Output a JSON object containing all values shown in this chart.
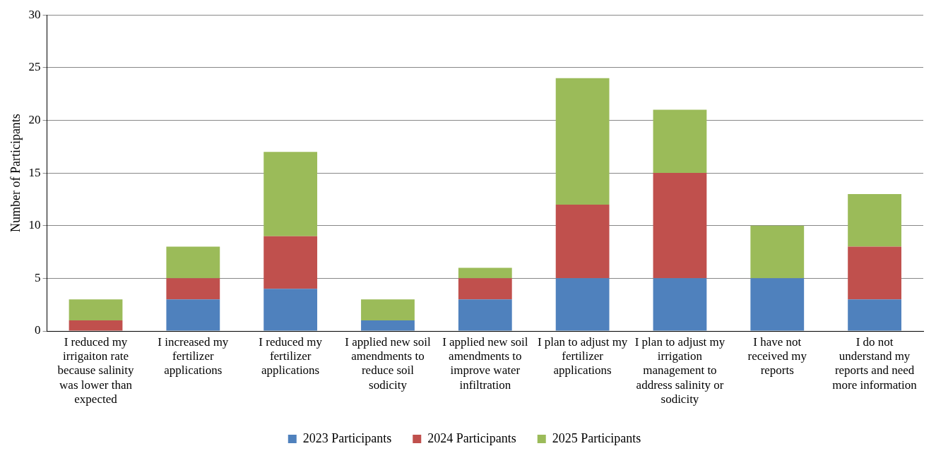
{
  "chart_data": {
    "type": "bar",
    "stacked": true,
    "ylabel": "Number of Participants",
    "categories": [
      "I reduced my irrigaiton rate because salinity was lower than expected",
      "I increased my fertilizer applications",
      "I reduced my fertilizer applications",
      "I applied new soil amendments to reduce soil sodicity",
      "I applied new soil amendments to improve water infiltration",
      "I plan to adjust my fertilizer applications",
      "I plan to adjust my irrigation management to address salinity or sodicity",
      "I have not received my reports",
      "I do not understand my reports and need more information"
    ],
    "series": [
      {
        "name": "2023 Participants",
        "color": "#4f81bd",
        "values": [
          0,
          3,
          4,
          1,
          3,
          5,
          5,
          5,
          3
        ]
      },
      {
        "name": "2024 Participants",
        "color": "#c0504d",
        "values": [
          1,
          2,
          5,
          0,
          2,
          7,
          10,
          0,
          5
        ]
      },
      {
        "name": "2025 Participants",
        "color": "#9bbb59",
        "values": [
          2,
          3,
          8,
          2,
          1,
          12,
          6,
          5,
          5
        ]
      }
    ],
    "ylim": [
      0,
      30
    ],
    "yticks": [
      0,
      5,
      10,
      15,
      20,
      25,
      30
    ],
    "grid": "y",
    "legend": "bottom"
  }
}
